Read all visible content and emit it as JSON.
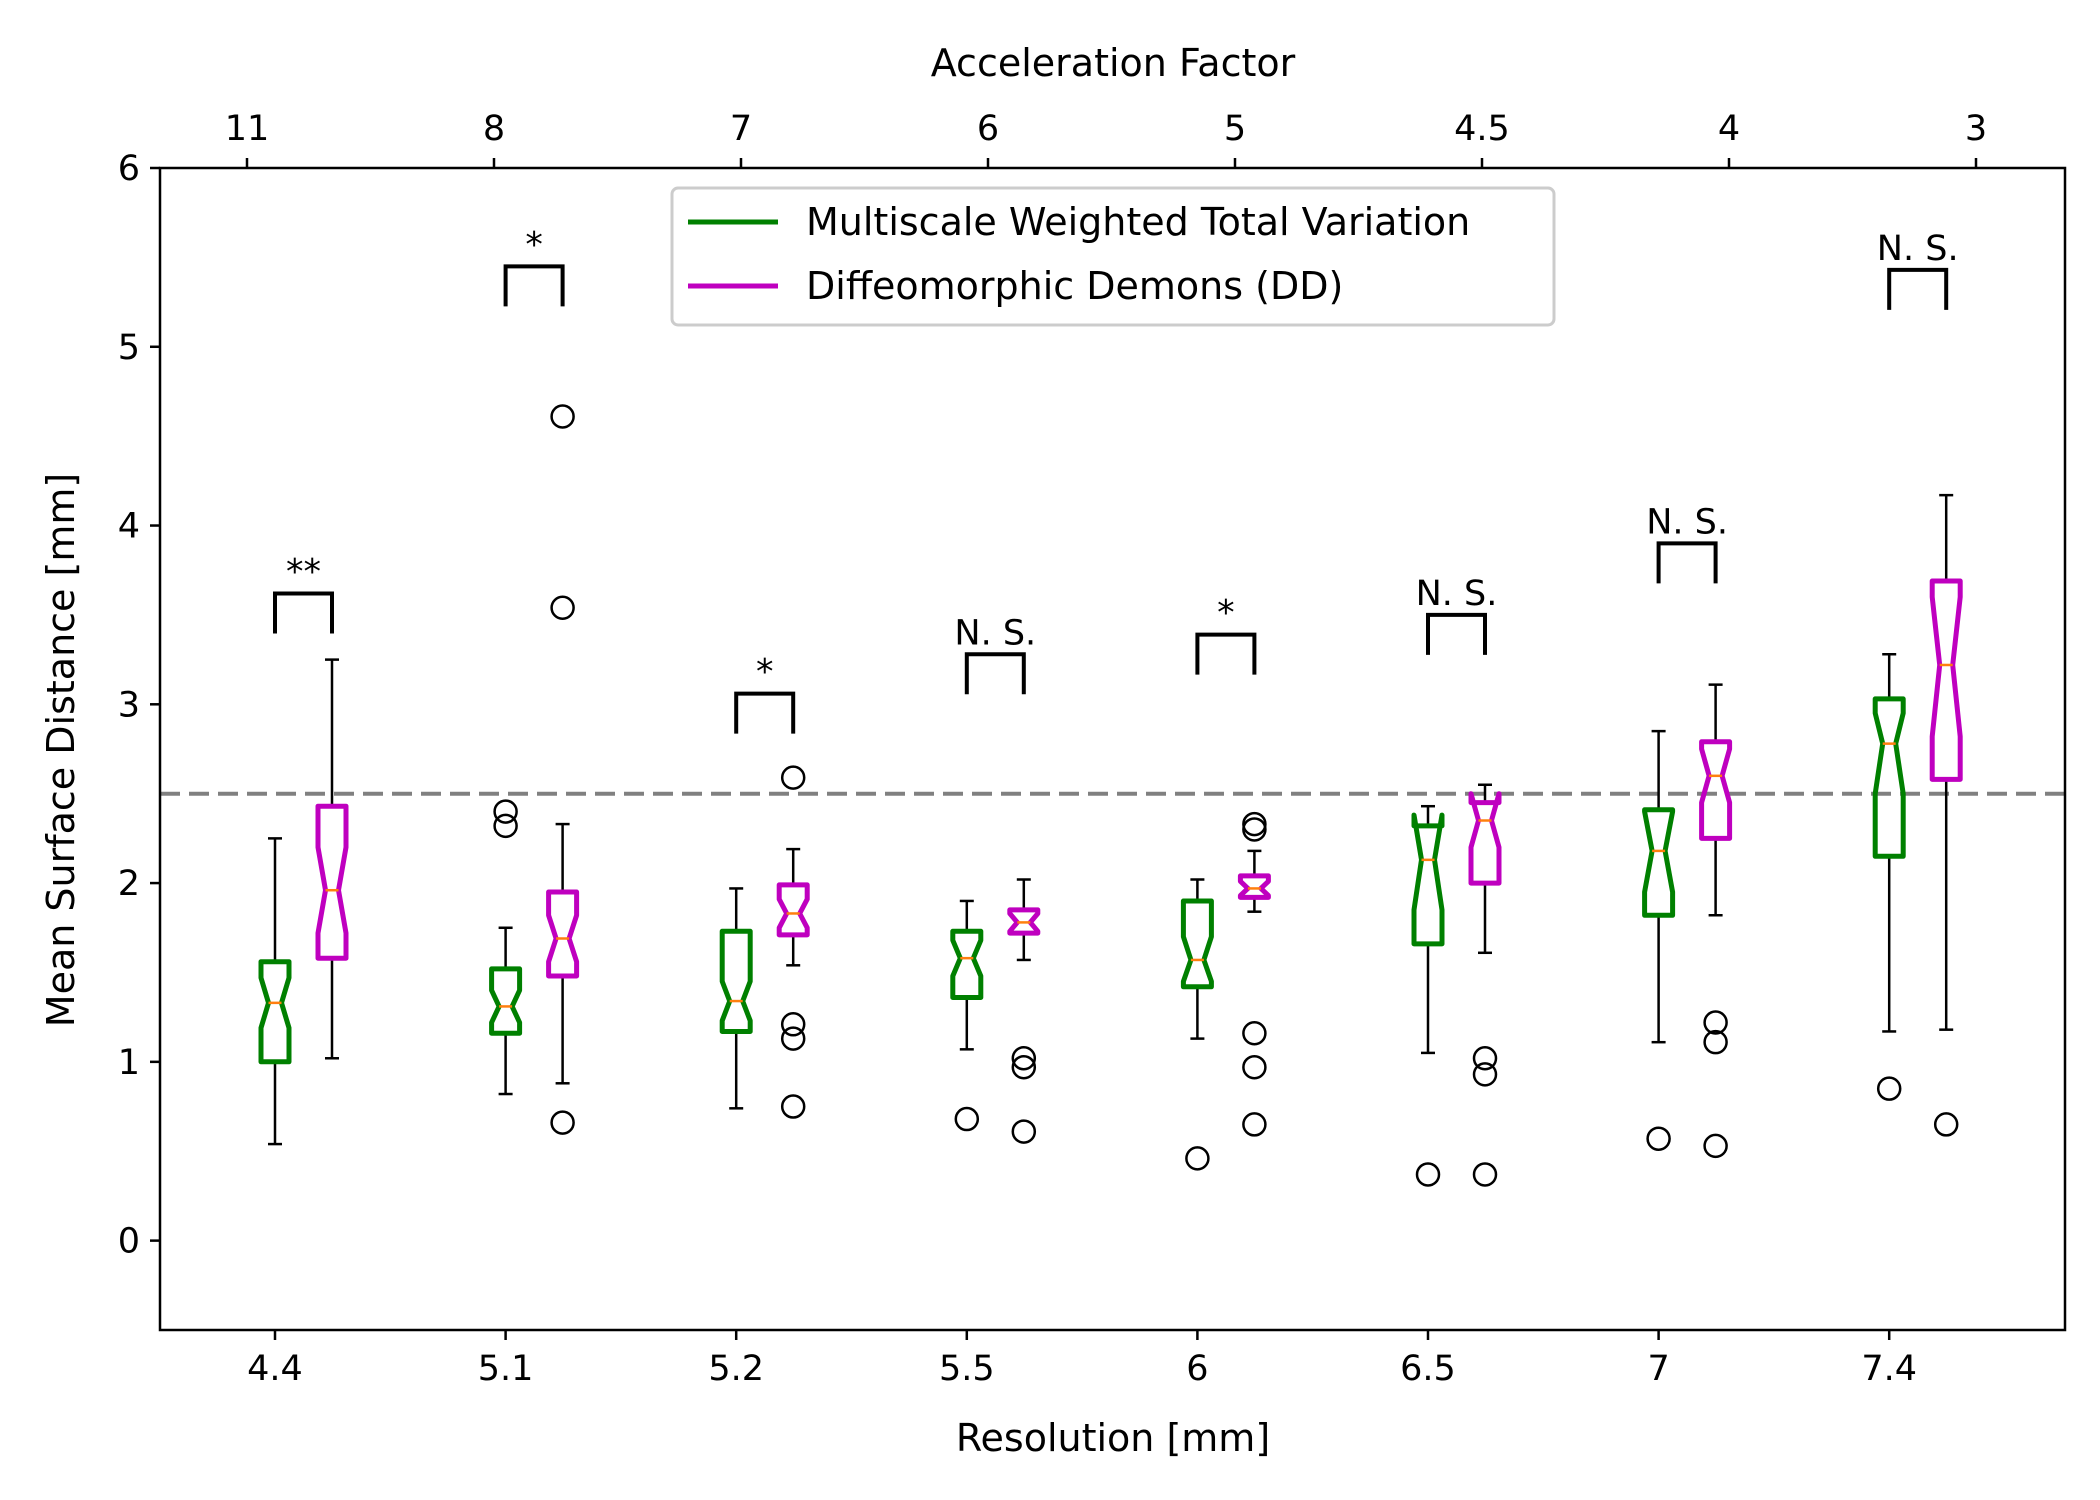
{
  "chart_data": {
    "type": "boxplot",
    "notched": true,
    "xlabel": "Resolution [mm]",
    "ylabel": "Mean Surface Distance [mm]",
    "top_xlabel": "Acceleration Factor",
    "ylim": [
      -0.5,
      6
    ],
    "yticks": [
      "0",
      "1",
      "2",
      "3",
      "4",
      "5",
      "6"
    ],
    "categories": [
      "4.4",
      "5.1",
      "5.2",
      "5.5",
      "6",
      "6.5",
      "7",
      "7.4"
    ],
    "top_ticks": [
      "11",
      "8",
      "7",
      "6",
      "5",
      "4.5",
      "4",
      "3"
    ],
    "reference_line": 2.5,
    "series": [
      {
        "name": "Multiscale Weighted Total Variation",
        "color": "#008000",
        "boxes": [
          {
            "q1": 1.0,
            "median": 1.33,
            "q3": 1.56,
            "whislo": 0.54,
            "whishi": 2.25,
            "notch_lo": 1.19,
            "notch_hi": 1.47,
            "fliers": []
          },
          {
            "q1": 1.16,
            "median": 1.31,
            "q3": 1.52,
            "whislo": 0.82,
            "whishi": 1.75,
            "notch_lo": 1.22,
            "notch_hi": 1.4,
            "fliers": [
              2.4,
              2.32
            ]
          },
          {
            "q1": 1.17,
            "median": 1.34,
            "q3": 1.73,
            "whislo": 0.74,
            "whishi": 1.97,
            "notch_lo": 1.23,
            "notch_hi": 1.45,
            "fliers": []
          },
          {
            "q1": 1.36,
            "median": 1.58,
            "q3": 1.73,
            "whislo": 1.07,
            "whishi": 1.9,
            "notch_lo": 1.48,
            "notch_hi": 1.68,
            "fliers": [
              0.68
            ]
          },
          {
            "q1": 1.42,
            "median": 1.57,
            "q3": 1.9,
            "whislo": 1.13,
            "whishi": 2.02,
            "notch_lo": 1.45,
            "notch_hi": 1.7,
            "fliers": [
              0.46
            ]
          },
          {
            "q1": 1.66,
            "median": 2.13,
            "q3": 2.32,
            "whislo": 1.05,
            "whishi": 2.43,
            "notch_lo": 1.85,
            "notch_hi": 2.38,
            "fliers": [
              0.37
            ]
          },
          {
            "q1": 1.82,
            "median": 2.18,
            "q3": 2.41,
            "whislo": 1.11,
            "whishi": 2.85,
            "notch_lo": 1.95,
            "notch_hi": 2.4,
            "fliers": [
              0.57
            ]
          },
          {
            "q1": 2.15,
            "median": 2.78,
            "q3": 3.03,
            "whislo": 1.17,
            "whishi": 3.28,
            "notch_lo": 2.5,
            "notch_hi": 2.95,
            "fliers": [
              0.85
            ]
          }
        ]
      },
      {
        "name": "Diffeomorphic Demons (DD)",
        "color": "#bf00bf",
        "boxes": [
          {
            "q1": 1.58,
            "median": 1.96,
            "q3": 2.43,
            "whislo": 1.02,
            "whishi": 3.25,
            "notch_lo": 1.72,
            "notch_hi": 2.2,
            "fliers": []
          },
          {
            "q1": 1.48,
            "median": 1.69,
            "q3": 1.95,
            "whislo": 0.88,
            "whishi": 2.33,
            "notch_lo": 1.56,
            "notch_hi": 1.82,
            "fliers": [
              4.61,
              3.54,
              0.66
            ]
          },
          {
            "q1": 1.71,
            "median": 1.83,
            "q3": 1.99,
            "whislo": 1.54,
            "whishi": 2.19,
            "notch_lo": 1.75,
            "notch_hi": 1.91,
            "fliers": [
              2.59,
              1.21,
              1.13,
              0.75
            ]
          },
          {
            "q1": 1.72,
            "median": 1.78,
            "q3": 1.85,
            "whislo": 1.57,
            "whishi": 2.02,
            "notch_lo": 1.73,
            "notch_hi": 1.83,
            "fliers": [
              1.02,
              0.97,
              0.61
            ]
          },
          {
            "q1": 1.92,
            "median": 1.97,
            "q3": 2.04,
            "whislo": 1.84,
            "whishi": 2.18,
            "notch_lo": 1.93,
            "notch_hi": 2.01,
            "fliers": [
              2.33,
              2.3,
              1.16,
              0.97,
              0.65
            ]
          },
          {
            "q1": 2.0,
            "median": 2.35,
            "q3": 2.45,
            "whislo": 1.61,
            "whishi": 2.55,
            "notch_lo": 2.2,
            "notch_hi": 2.5,
            "fliers": [
              1.02,
              0.93,
              0.37
            ]
          },
          {
            "q1": 2.25,
            "median": 2.6,
            "q3": 2.79,
            "whislo": 1.82,
            "whishi": 3.11,
            "notch_lo": 2.45,
            "notch_hi": 2.75,
            "fliers": [
              1.22,
              1.11,
              0.53
            ]
          },
          {
            "q1": 2.58,
            "median": 3.22,
            "q3": 3.69,
            "whislo": 1.18,
            "whishi": 4.17,
            "notch_lo": 2.82,
            "notch_hi": 3.6,
            "fliers": [
              0.65
            ]
          }
        ]
      }
    ],
    "significance": [
      {
        "label": "**",
        "y": 3.62
      },
      {
        "label": "*",
        "y": 5.45
      },
      {
        "label": "*",
        "y": 3.06
      },
      {
        "label": "N. S.",
        "y": 3.28
      },
      {
        "label": "*",
        "y": 3.39
      },
      {
        "label": "N. S.",
        "y": 3.5
      },
      {
        "label": "N. S.",
        "y": 3.9
      },
      {
        "label": "N. S.",
        "y": 5.43
      }
    ],
    "legend_position": "top-center"
  }
}
